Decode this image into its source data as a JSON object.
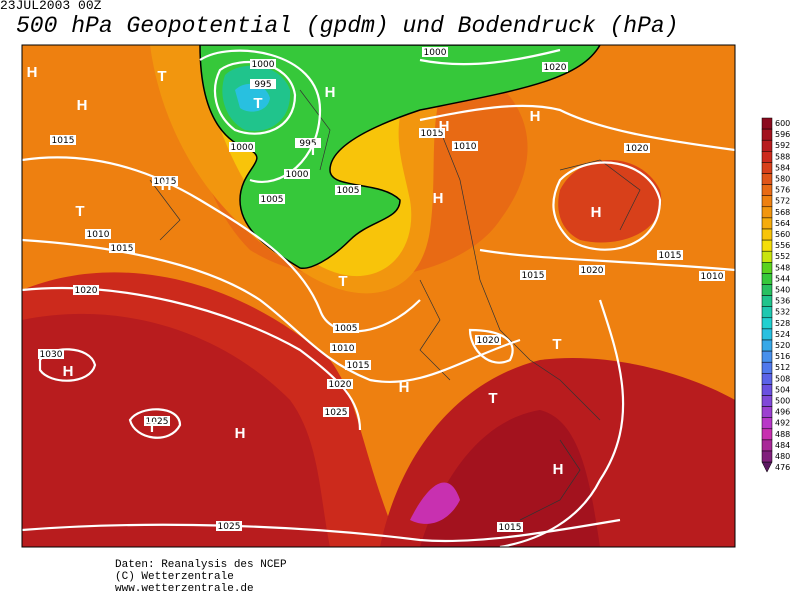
{
  "header": {
    "date": "23JUL2003 00Z",
    "title": "500 hPa Geopotential (gpdm) und Bodendruck (hPa)"
  },
  "legend": {
    "levels": [
      600,
      596,
      592,
      588,
      584,
      580,
      576,
      572,
      568,
      564,
      560,
      556,
      552,
      548,
      544,
      540,
      536,
      532,
      528,
      524,
      520,
      516,
      512,
      508,
      504,
      500,
      496,
      492,
      488,
      484,
      480,
      476
    ],
    "colors": [
      "#8b0a1e",
      "#a3121e",
      "#b81c1e",
      "#cc2a1c",
      "#d8401a",
      "#e05518",
      "#e86a14",
      "#ee8010",
      "#f2960e",
      "#f6ac0c",
      "#f8c40a",
      "#f4de0a",
      "#c8e40e",
      "#5ad21e",
      "#36c83a",
      "#28c060",
      "#20c48c",
      "#1ec8b0",
      "#20d0d0",
      "#28c0e0",
      "#38a8e8",
      "#4890ec",
      "#5078ec",
      "#5a62e8",
      "#6a50e0",
      "#8048d8",
      "#9c40d0",
      "#b838c8",
      "#c830b0",
      "#a82898",
      "#80207c",
      "#5a1860"
    ]
  },
  "pressure_labels": [
    "1000",
    "1020",
    "1000",
    "995",
    "1015",
    "1015",
    "1010",
    "1020",
    "1000",
    "995",
    "1000",
    "1005",
    "1005",
    "1015",
    "1010",
    "1015",
    "1015",
    "1020",
    "1015",
    "1010",
    "1020",
    "1005",
    "1010",
    "1015",
    "1020",
    "1020",
    "1030",
    "1025",
    "1025",
    "1025",
    "1015"
  ],
  "centers": [
    "H",
    "T",
    "H",
    "T",
    "H",
    "T",
    "H",
    "H",
    "H",
    "T",
    "H",
    "H",
    "T",
    "H",
    "H",
    "T",
    "T",
    "T",
    "H",
    "H"
  ],
  "footer": [
    "Daten: Reanalysis des NCEP",
    "(C) Wetterzentrale",
    "www.wetterzentrale.de"
  ]
}
